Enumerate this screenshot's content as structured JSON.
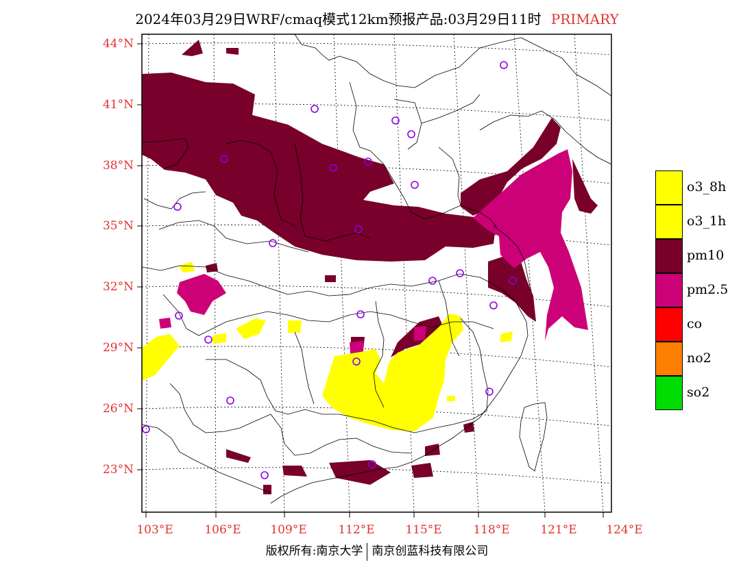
{
  "title": {
    "main": "2024年03月29日WRF/cmaq模式12km预报产品:03月29日11时",
    "tag": "PRIMARY"
  },
  "axes": {
    "lat_labels": [
      "44°N",
      "41°N",
      "38°N",
      "35°N",
      "32°N",
      "29°N",
      "26°N",
      "23°N"
    ],
    "lon_labels": [
      "103°E",
      "106°E",
      "109°E",
      "112°E",
      "115°E",
      "118°E",
      "121°E",
      "124°E"
    ]
  },
  "legend": [
    {
      "label": "o3_8h",
      "color": "#ffff00"
    },
    {
      "label": "o3_1h",
      "color": "#ffff00"
    },
    {
      "label": "pm10",
      "color": "#78002a"
    },
    {
      "label": "pm2.5",
      "color": "#cc0077"
    },
    {
      "label": "co",
      "color": "#ff0000"
    },
    {
      "label": "no2",
      "color": "#ff7f00"
    },
    {
      "label": "so2",
      "color": "#00dd00"
    }
  ],
  "footer": {
    "left": "版权所有:南京大学",
    "right": "南京创蓝科技有限公司"
  }
}
